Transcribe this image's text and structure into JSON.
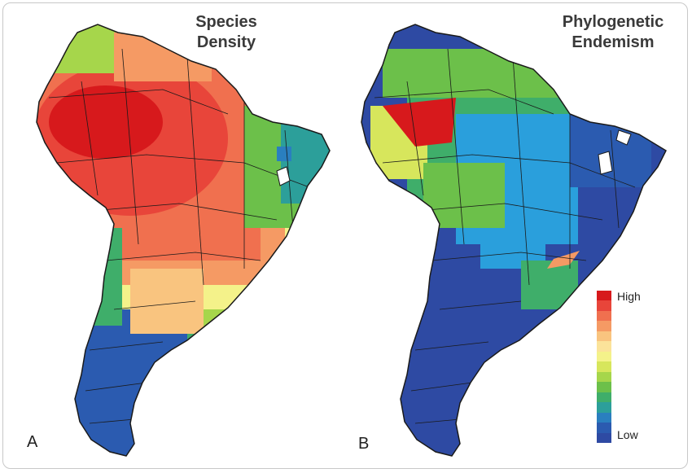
{
  "panel_a": {
    "title_line1": "Species",
    "title_line2": "Density",
    "letter": "A"
  },
  "panel_b": {
    "title_line1": "Phylogenetic",
    "title_line2": "Endemism",
    "letter": "B"
  },
  "legend": {
    "high_label": "High",
    "low_label": "Low",
    "colors_high_to_low": [
      "#d7191c",
      "#e8453a",
      "#f0704f",
      "#f59a64",
      "#f9c47f",
      "#fbe39a",
      "#f4f28a",
      "#d7e65c",
      "#a6d64b",
      "#6cc04a",
      "#3fae6a",
      "#2c9f9a",
      "#2a7fbf",
      "#2b5bb0",
      "#2e4aa3"
    ]
  },
  "colors": {
    "boundary": "#1a1a1a",
    "background": "#ffffff",
    "frame": "#c8c8c8"
  }
}
